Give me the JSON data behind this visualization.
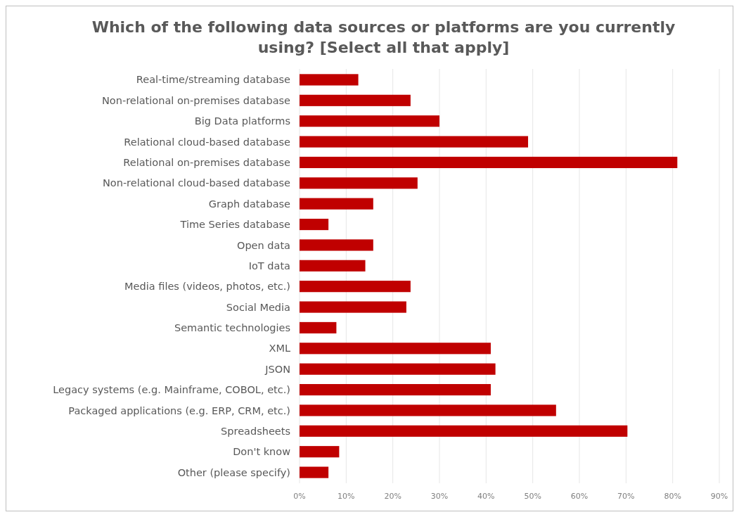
{
  "chart_data": {
    "type": "bar",
    "orientation": "horizontal",
    "title": "Which of the following data sources or platforms are you currently using? [Select all that apply]",
    "categories": [
      "Real-time/streaming database",
      "Non-relational on-premises database",
      "Big Data platforms",
      "Relational cloud-based database",
      "Relational on-premises database",
      "Non-relational cloud-based database",
      "Graph database",
      "Time Series database",
      "Open data",
      "IoT data",
      "Media files (videos, photos, etc.)",
      "Social Media",
      "Semantic technologies",
      "XML",
      "JSON",
      "Legacy systems (e.g. Mainframe, COBOL, etc.)",
      "Packaged applications (e.g. ERP, CRM, etc.)",
      "Spreadsheets",
      "Don't know",
      "Other (please specify)"
    ],
    "values": [
      12.6,
      23.8,
      30,
      49,
      81,
      25.3,
      15.8,
      6.2,
      15.8,
      14.1,
      23.8,
      22.9,
      7.9,
      41,
      42,
      41,
      55,
      70.3,
      8.5,
      6.2
    ],
    "color": "#c00000",
    "xlim": [
      0,
      90
    ],
    "xticks": [
      {
        "value": 0,
        "label": "0%"
      },
      {
        "value": 10,
        "label": "10%"
      },
      {
        "value": 20,
        "label": "20%"
      },
      {
        "value": 30,
        "label": "30%"
      },
      {
        "value": 40,
        "label": "40%"
      },
      {
        "value": 50,
        "label": "50%"
      },
      {
        "value": 60,
        "label": "60%"
      },
      {
        "value": 70,
        "label": "70%"
      },
      {
        "value": 80,
        "label": "80%"
      },
      {
        "value": 90,
        "label": "90%"
      }
    ],
    "grid": "x"
  }
}
